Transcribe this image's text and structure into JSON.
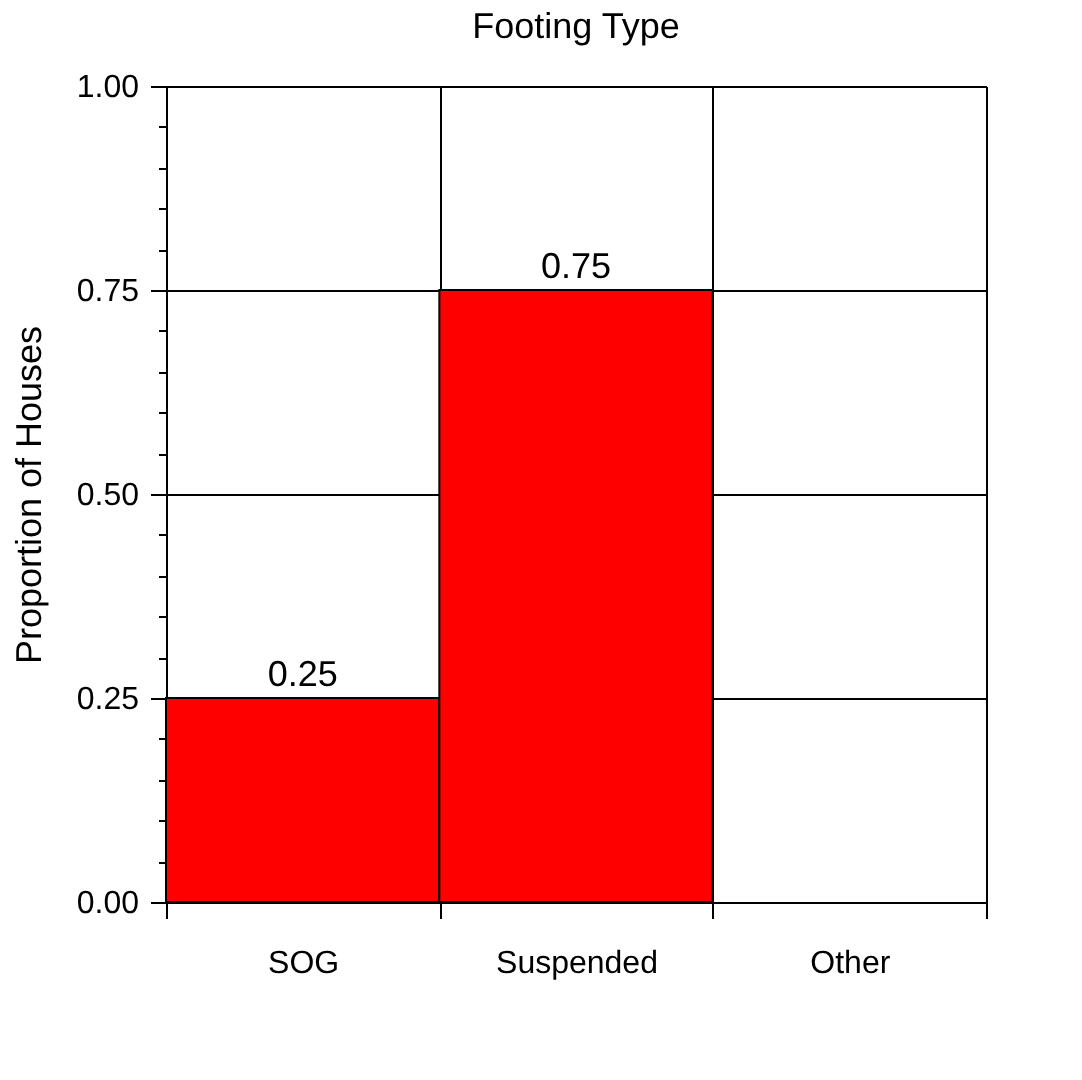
{
  "chart_data": {
    "type": "bar",
    "title": "Footing Type",
    "ylabel": "Proportion of Houses",
    "categories": [
      "SOG",
      "Suspended",
      "Other"
    ],
    "values": [
      0.25,
      0.75,
      0
    ],
    "value_labels": [
      "0.25",
      "0.75",
      null
    ],
    "color": "#ff0000",
    "ylim": [
      0,
      1
    ],
    "yticks": [
      {
        "value": 0,
        "label": "0.00"
      },
      {
        "value": 0.05,
        "label": null
      },
      {
        "value": 0.1,
        "label": null
      },
      {
        "value": 0.15,
        "label": null
      },
      {
        "value": 0.2,
        "label": null
      },
      {
        "value": 0.25,
        "label": "0.25"
      },
      {
        "value": 0.3,
        "label": null
      },
      {
        "value": 0.35,
        "label": null
      },
      {
        "value": 0.4,
        "label": null
      },
      {
        "value": 0.45,
        "label": null
      },
      {
        "value": 0.5,
        "label": "0.50"
      },
      {
        "value": 0.55,
        "label": null
      },
      {
        "value": 0.6,
        "label": null
      },
      {
        "value": 0.65,
        "label": null
      },
      {
        "value": 0.7,
        "label": null
      },
      {
        "value": 0.75,
        "label": "0.75"
      },
      {
        "value": 0.8,
        "label": null
      },
      {
        "value": 0.85,
        "label": null
      },
      {
        "value": 0.9,
        "label": null
      },
      {
        "value": 0.95,
        "label": null
      },
      {
        "value": 1,
        "label": "1.00"
      }
    ],
    "grid": true
  }
}
